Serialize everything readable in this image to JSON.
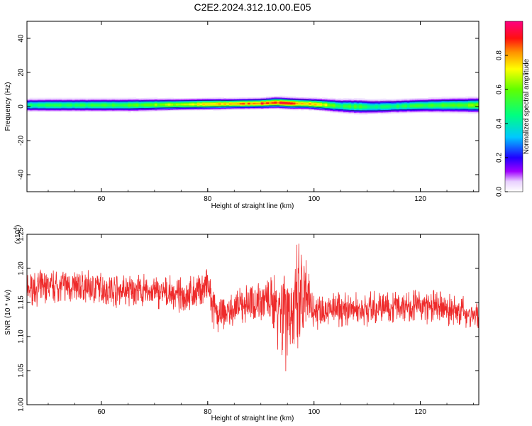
{
  "title": "C2E2.2024.312.10.00.E05",
  "chart_data": [
    {
      "type": "heatmap",
      "xlabel": "Height of straight line (km)",
      "ylabel": "Frequency (Hz)",
      "xlim": [
        46,
        131
      ],
      "ylim": [
        -50,
        50
      ],
      "xticks": [
        60,
        80,
        100,
        120
      ],
      "yticks": [
        -40,
        -20,
        0,
        20,
        40
      ],
      "colorbar": {
        "label": "Normalized spectral amplitude",
        "range": [
          0,
          1
        ],
        "ticks": [
          "0.0",
          "0.2",
          "0.4",
          "0.6",
          "0.8"
        ]
      },
      "band_profile": {
        "x": [
          46,
          50,
          55,
          60,
          65,
          70,
          75,
          80,
          85,
          90,
          93,
          96,
          99,
          102,
          105,
          108,
          111,
          115,
          120,
          125,
          131
        ],
        "peak_amplitude": [
          0.45,
          0.5,
          0.5,
          0.52,
          0.55,
          0.62,
          0.68,
          0.74,
          0.8,
          0.88,
          0.9,
          0.86,
          0.82,
          0.7,
          0.5,
          0.55,
          0.45,
          0.48,
          0.52,
          0.56,
          0.6
        ],
        "center_hz": [
          1,
          1,
          1,
          1,
          1,
          1.2,
          1.4,
          1.6,
          1.8,
          2,
          2.5,
          2,
          1.8,
          1.2,
          0.5,
          0.2,
          0,
          0.3,
          0.8,
          1,
          1
        ],
        "halfwidth_hz": [
          3,
          3,
          3,
          3,
          3,
          2.8,
          2.6,
          2.6,
          2.4,
          2.4,
          2.6,
          2.6,
          2.6,
          2.8,
          3.2,
          3.4,
          3.4,
          3.2,
          3.2,
          3.4,
          3.6
        ]
      }
    },
    {
      "type": "line",
      "xlabel": "Height of straight line (km)",
      "ylabel": "SNR (10 * v/v)",
      "y_multiplier": "(x10^4)",
      "xlim": [
        46,
        131
      ],
      "ylim": [
        1.0,
        1.25
      ],
      "xticks": [
        60,
        80,
        100,
        120
      ],
      "yticks": [
        "1.00",
        "1.05",
        "1.10",
        "1.15",
        "1.20",
        "1.25"
      ],
      "series": [
        {
          "color": "#ee2a2a",
          "trend": {
            "x": [
              46,
              52,
              60,
              70,
              75,
              78,
              80,
              81,
              82,
              85,
              88,
              90,
              92,
              93,
              94,
              95,
              96,
              97,
              98,
              99,
              100,
              102,
              105,
              110,
              115,
              120,
              125,
              131
            ],
            "mean": [
              1.17,
              1.175,
              1.17,
              1.165,
              1.16,
              1.165,
              1.175,
              1.14,
              1.13,
              1.14,
              1.15,
              1.155,
              1.15,
              1.15,
              1.14,
              1.15,
              1.13,
              1.14,
              1.15,
              1.15,
              1.14,
              1.14,
              1.14,
              1.14,
              1.145,
              1.145,
              1.14,
              1.13
            ],
            "noise": [
              0.02,
              0.02,
              0.02,
              0.02,
              0.02,
              0.02,
              0.025,
              0.025,
              0.02,
              0.02,
              0.025,
              0.025,
              0.03,
              0.05,
              0.07,
              0.08,
              0.06,
              0.08,
              0.07,
              0.04,
              0.025,
              0.02,
              0.02,
              0.02,
              0.02,
              0.02,
              0.02,
              0.02
            ]
          }
        }
      ]
    }
  ]
}
